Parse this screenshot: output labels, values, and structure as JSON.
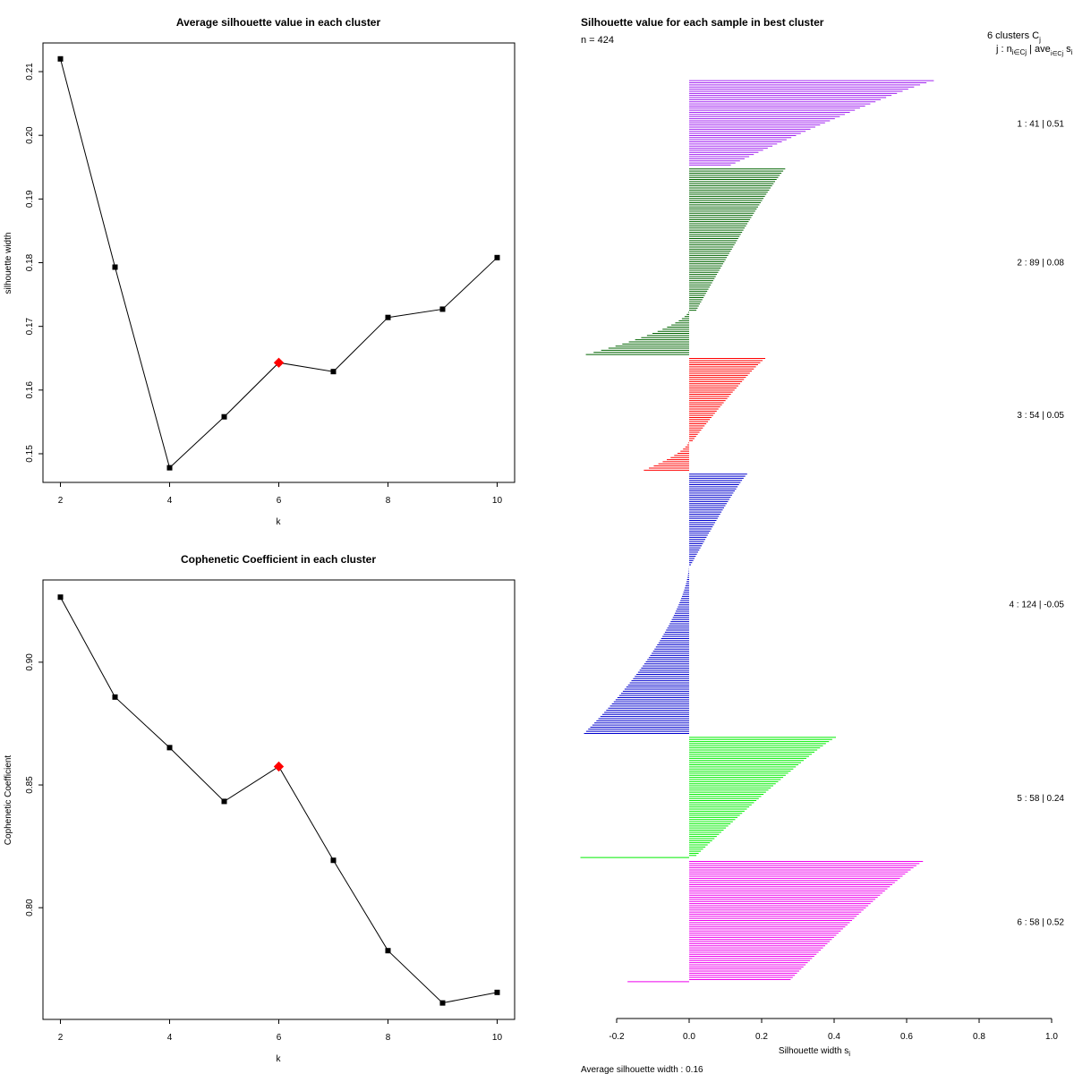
{
  "chart_data": [
    {
      "type": "line",
      "title": "Average silhouette value in each cluster",
      "xlabel": "k",
      "ylabel": "silhouette width",
      "x": [
        2,
        3,
        4,
        5,
        6,
        7,
        8,
        9,
        10
      ],
      "values": [
        0.212,
        0.1793,
        0.1478,
        0.1558,
        0.1643,
        0.1629,
        0.1714,
        0.1727,
        0.1808
      ],
      "highlight_k": 6,
      "highlight_color": "#ff0000",
      "xticks": [
        "2",
        "4",
        "6",
        "8",
        "10"
      ],
      "yticks": [
        "0.15",
        "0.16",
        "0.17",
        "0.18",
        "0.19",
        "0.20",
        "0.21"
      ],
      "ylim": [
        0.1455,
        0.2145
      ]
    },
    {
      "type": "line",
      "title": "Cophenetic Coefficient in each cluster",
      "xlabel": "k",
      "ylabel": "Cophenetic Coefficient",
      "x": [
        2,
        3,
        4,
        5,
        6,
        7,
        8,
        9,
        10
      ],
      "values": [
        0.9265,
        0.8858,
        0.8652,
        0.8433,
        0.8575,
        0.8193,
        0.7825,
        0.7612,
        0.7655
      ],
      "highlight_k": 6,
      "highlight_color": "#ff0000",
      "xticks": [
        "2",
        "4",
        "6",
        "8",
        "10"
      ],
      "yticks": [
        "0.80",
        "0.85",
        "0.90"
      ],
      "ylim": [
        0.7545,
        0.9335
      ]
    },
    {
      "type": "bar",
      "title": "Silhouette value for each sample in best cluster",
      "n_label": "n = 424",
      "xlabel": "Silhouette width s",
      "xlabel_sub": "i",
      "footer": "Average silhouette width :  0.16",
      "xticks": [
        "-0.2",
        "0.0",
        "0.2",
        "0.4",
        "0.6",
        "0.8",
        "1.0"
      ],
      "xlim": [
        -0.2,
        1.0
      ],
      "legend_header_1": "6  clusters  C",
      "legend_header_1_sub": "j",
      "legend_header_2": "j :  n",
      "legend_header_2_mid": " | ave",
      "legend_header_2_sub": "i∈Cj",
      "legend_header_2_end": "  s",
      "legend_header_2_end_sub": "i",
      "clusters": [
        {
          "label": "1 :  41  |  0.51",
          "n": 41,
          "color": "#a020f0",
          "max": 0.675,
          "min": 0.115,
          "neg_min": 0,
          "neg_count": 0
        },
        {
          "label": "2 :  89  |  0.08",
          "n": 89,
          "color": "#006400",
          "max": 0.265,
          "min": 0.02,
          "neg_min": -0.285,
          "neg_count": 21
        },
        {
          "label": "3 :  54  |  0.05",
          "n": 54,
          "color": "#ff0000",
          "max": 0.21,
          "min": 0.01,
          "neg_min": -0.125,
          "neg_count": 14
        },
        {
          "label": "4 :  124  |  -0.05",
          "n": 124,
          "color": "#0000cd",
          "max": 0.16,
          "min": 0.005,
          "neg_min": -0.29,
          "neg_count": 80
        },
        {
          "label": "5 :  58  |  0.24",
          "n": 58,
          "color": "#00ee00",
          "max": 0.405,
          "min": 0.02,
          "neg_min": -0.3,
          "neg_count": 1
        },
        {
          "label": "6 :  58  |  0.52",
          "n": 58,
          "color": "#ee00ee",
          "max": 0.645,
          "min": 0.28,
          "neg_min": -0.17,
          "neg_count": 1
        }
      ]
    }
  ]
}
